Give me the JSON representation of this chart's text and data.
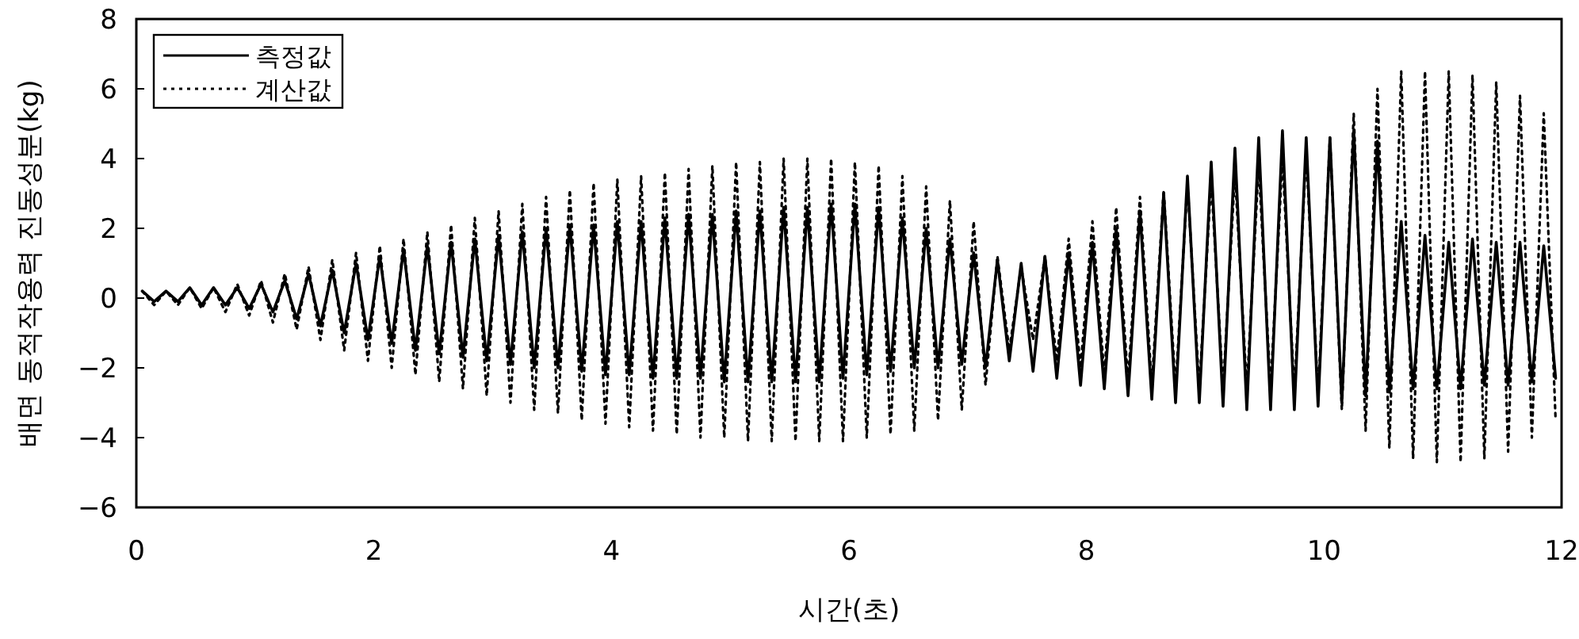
{
  "chart_data": {
    "type": "line",
    "xlabel": "시간(초)",
    "ylabel": "배면 동적작용력 진동성분(kg)",
    "xlim": [
      0,
      12
    ],
    "ylim": [
      -6,
      8
    ],
    "xticks": [
      0,
      2,
      4,
      6,
      8,
      10,
      12
    ],
    "yticks": [
      -6,
      -4,
      -2,
      0,
      2,
      4,
      6,
      8
    ],
    "legend": "top left",
    "grid": false,
    "marker": "none",
    "x": [
      0.05,
      0.15,
      0.25,
      0.35,
      0.45,
      0.55,
      0.65,
      0.75,
      0.85,
      0.95,
      1.05,
      1.15,
      1.25,
      1.35,
      1.45,
      1.55,
      1.65,
      1.75,
      1.85,
      1.95,
      2.05,
      2.15,
      2.25,
      2.35,
      2.45,
      2.55,
      2.65,
      2.75,
      2.85,
      2.95,
      3.05,
      3.15,
      3.25,
      3.35,
      3.45,
      3.55,
      3.65,
      3.75,
      3.85,
      3.95,
      4.05,
      4.15,
      4.25,
      4.35,
      4.45,
      4.55,
      4.65,
      4.75,
      4.85,
      4.95,
      5.05,
      5.15,
      5.25,
      5.35,
      5.45,
      5.55,
      5.65,
      5.75,
      5.85,
      5.95,
      6.05,
      6.15,
      6.25,
      6.35,
      6.45,
      6.55,
      6.65,
      6.75,
      6.85,
      6.95,
      7.05,
      7.15,
      7.25,
      7.35,
      7.45,
      7.55,
      7.65,
      7.75,
      7.85,
      7.95,
      8.05,
      8.15,
      8.25,
      8.35,
      8.45,
      8.55,
      8.65,
      8.75,
      8.85,
      8.95,
      9.05,
      9.15,
      9.25,
      9.35,
      9.45,
      9.55,
      9.65,
      9.75,
      9.85,
      9.95,
      10.05,
      10.15,
      10.25,
      10.35,
      10.45,
      10.55,
      10.65,
      10.75,
      10.85,
      10.95,
      11.05,
      11.15,
      11.25,
      11.35,
      11.45,
      11.55,
      11.65,
      11.75,
      11.85,
      11.95
    ],
    "series": [
      {
        "name": "측정값",
        "color": "#000000",
        "line_style": "solid",
        "values": [
          0.2,
          -0.1,
          0.2,
          -0.1,
          0.3,
          -0.2,
          0.3,
          -0.2,
          0.3,
          -0.3,
          0.4,
          -0.4,
          0.5,
          -0.6,
          0.7,
          -0.8,
          0.8,
          -1.0,
          1.0,
          -1.2,
          1.2,
          -1.3,
          1.4,
          -1.5,
          1.5,
          -1.6,
          1.6,
          -1.7,
          1.7,
          -1.8,
          1.8,
          -1.9,
          1.9,
          -2.0,
          2.0,
          -2.0,
          2.1,
          -2.1,
          2.1,
          -2.2,
          2.2,
          -2.2,
          2.2,
          -2.3,
          2.3,
          -2.3,
          2.4,
          -2.3,
          2.4,
          -2.4,
          2.5,
          -2.4,
          2.5,
          -2.4,
          2.6,
          -2.4,
          2.6,
          -2.4,
          2.7,
          -2.3,
          2.7,
          -2.2,
          2.6,
          -2.1,
          2.3,
          -2.0,
          2.0,
          -2.0,
          1.7,
          -1.9,
          1.3,
          -2.0,
          1.1,
          -1.8,
          1.0,
          -2.1,
          1.2,
          -2.3,
          1.3,
          -2.5,
          1.6,
          -2.6,
          2.0,
          -2.8,
          2.5,
          -2.9,
          3.0,
          -3.0,
          3.5,
          -3.0,
          3.9,
          -3.1,
          4.3,
          -3.2,
          4.6,
          -3.2,
          4.8,
          -3.2,
          4.6,
          -3.1,
          4.6,
          -3.0,
          4.8,
          -2.8,
          4.5,
          -2.7,
          2.2,
          -2.6,
          1.8,
          -2.6,
          1.6,
          -2.6,
          1.7,
          -2.5,
          1.6,
          -2.5,
          1.6,
          -2.4,
          1.5,
          -2.3
        ]
      },
      {
        "name": "계산값",
        "color": "#000000",
        "line_style": "dotted",
        "values": [
          0.2,
          -0.2,
          0.2,
          -0.2,
          0.3,
          -0.3,
          0.3,
          -0.4,
          0.4,
          -0.5,
          0.5,
          -0.7,
          0.7,
          -0.9,
          0.9,
          -1.2,
          1.1,
          -1.5,
          1.3,
          -1.8,
          1.5,
          -2.0,
          1.7,
          -2.2,
          1.9,
          -2.4,
          2.1,
          -2.6,
          2.3,
          -2.8,
          2.5,
          -3.0,
          2.7,
          -3.2,
          2.9,
          -3.3,
          3.1,
          -3.5,
          3.3,
          -3.6,
          3.4,
          -3.7,
          3.5,
          -3.8,
          3.6,
          -3.9,
          3.7,
          -4.0,
          3.8,
          -4.0,
          3.9,
          -4.1,
          3.9,
          -4.1,
          4.0,
          -4.1,
          4.0,
          -4.1,
          4.0,
          -4.1,
          3.9,
          -4.0,
          3.8,
          -3.9,
          3.5,
          -3.8,
          3.2,
          -3.5,
          2.8,
          -3.2,
          2.2,
          -2.5,
          1.2,
          -1.5,
          0.9,
          -1.2,
          1.2,
          -1.8,
          1.7,
          -2.0,
          2.2,
          -2.2,
          2.6,
          -2.4,
          2.9,
          -2.5,
          3.1,
          -2.6,
          3.3,
          -2.6,
          3.4,
          -2.6,
          3.6,
          -2.6,
          3.8,
          -2.6,
          4.0,
          -2.7,
          4.2,
          -2.8,
          4.6,
          -3.2,
          5.3,
          -3.8,
          6.0,
          -4.3,
          6.5,
          -4.6,
          6.5,
          -4.7,
          6.5,
          -4.7,
          6.4,
          -4.6,
          6.2,
          -4.4,
          5.8,
          -4.0,
          5.3,
          -3.5
        ]
      }
    ]
  }
}
